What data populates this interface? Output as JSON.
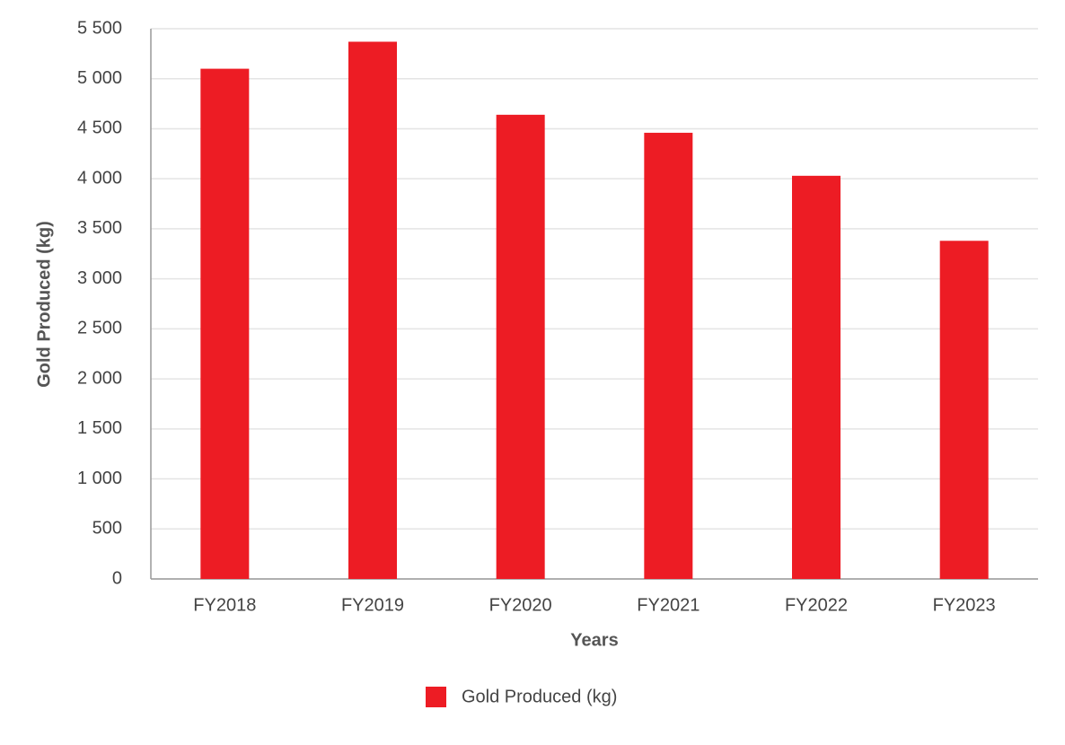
{
  "chart_data": {
    "type": "bar",
    "xlabel": "Years",
    "ylabel": "Gold Produced (kg)",
    "categories": [
      "FY2018",
      "FY2019",
      "FY2020",
      "FY2021",
      "FY2022",
      "FY2023"
    ],
    "series": [
      {
        "name": "Gold Produced (kg)",
        "color": "#ed1c24",
        "values": [
          5100,
          5370,
          4640,
          4460,
          4030,
          3380
        ]
      }
    ],
    "ylim": [
      0,
      5500
    ],
    "yticks": [
      0,
      500,
      {
        "value": 1000,
        "label": "1 000"
      },
      {
        "value": 1500,
        "label": "1 500"
      },
      {
        "value": 2000,
        "label": "2 000"
      },
      {
        "value": 2500,
        "label": "2 500"
      },
      {
        "value": 3000,
        "label": "3 000"
      },
      {
        "value": 3500,
        "label": "3 500"
      },
      {
        "value": 4000,
        "label": "4 000"
      },
      {
        "value": 4500,
        "label": "4 500"
      },
      {
        "value": 5000,
        "label": "5 000"
      },
      {
        "value": 5500,
        "label": "5 500"
      }
    ],
    "grid": true,
    "legend": "bottom"
  }
}
